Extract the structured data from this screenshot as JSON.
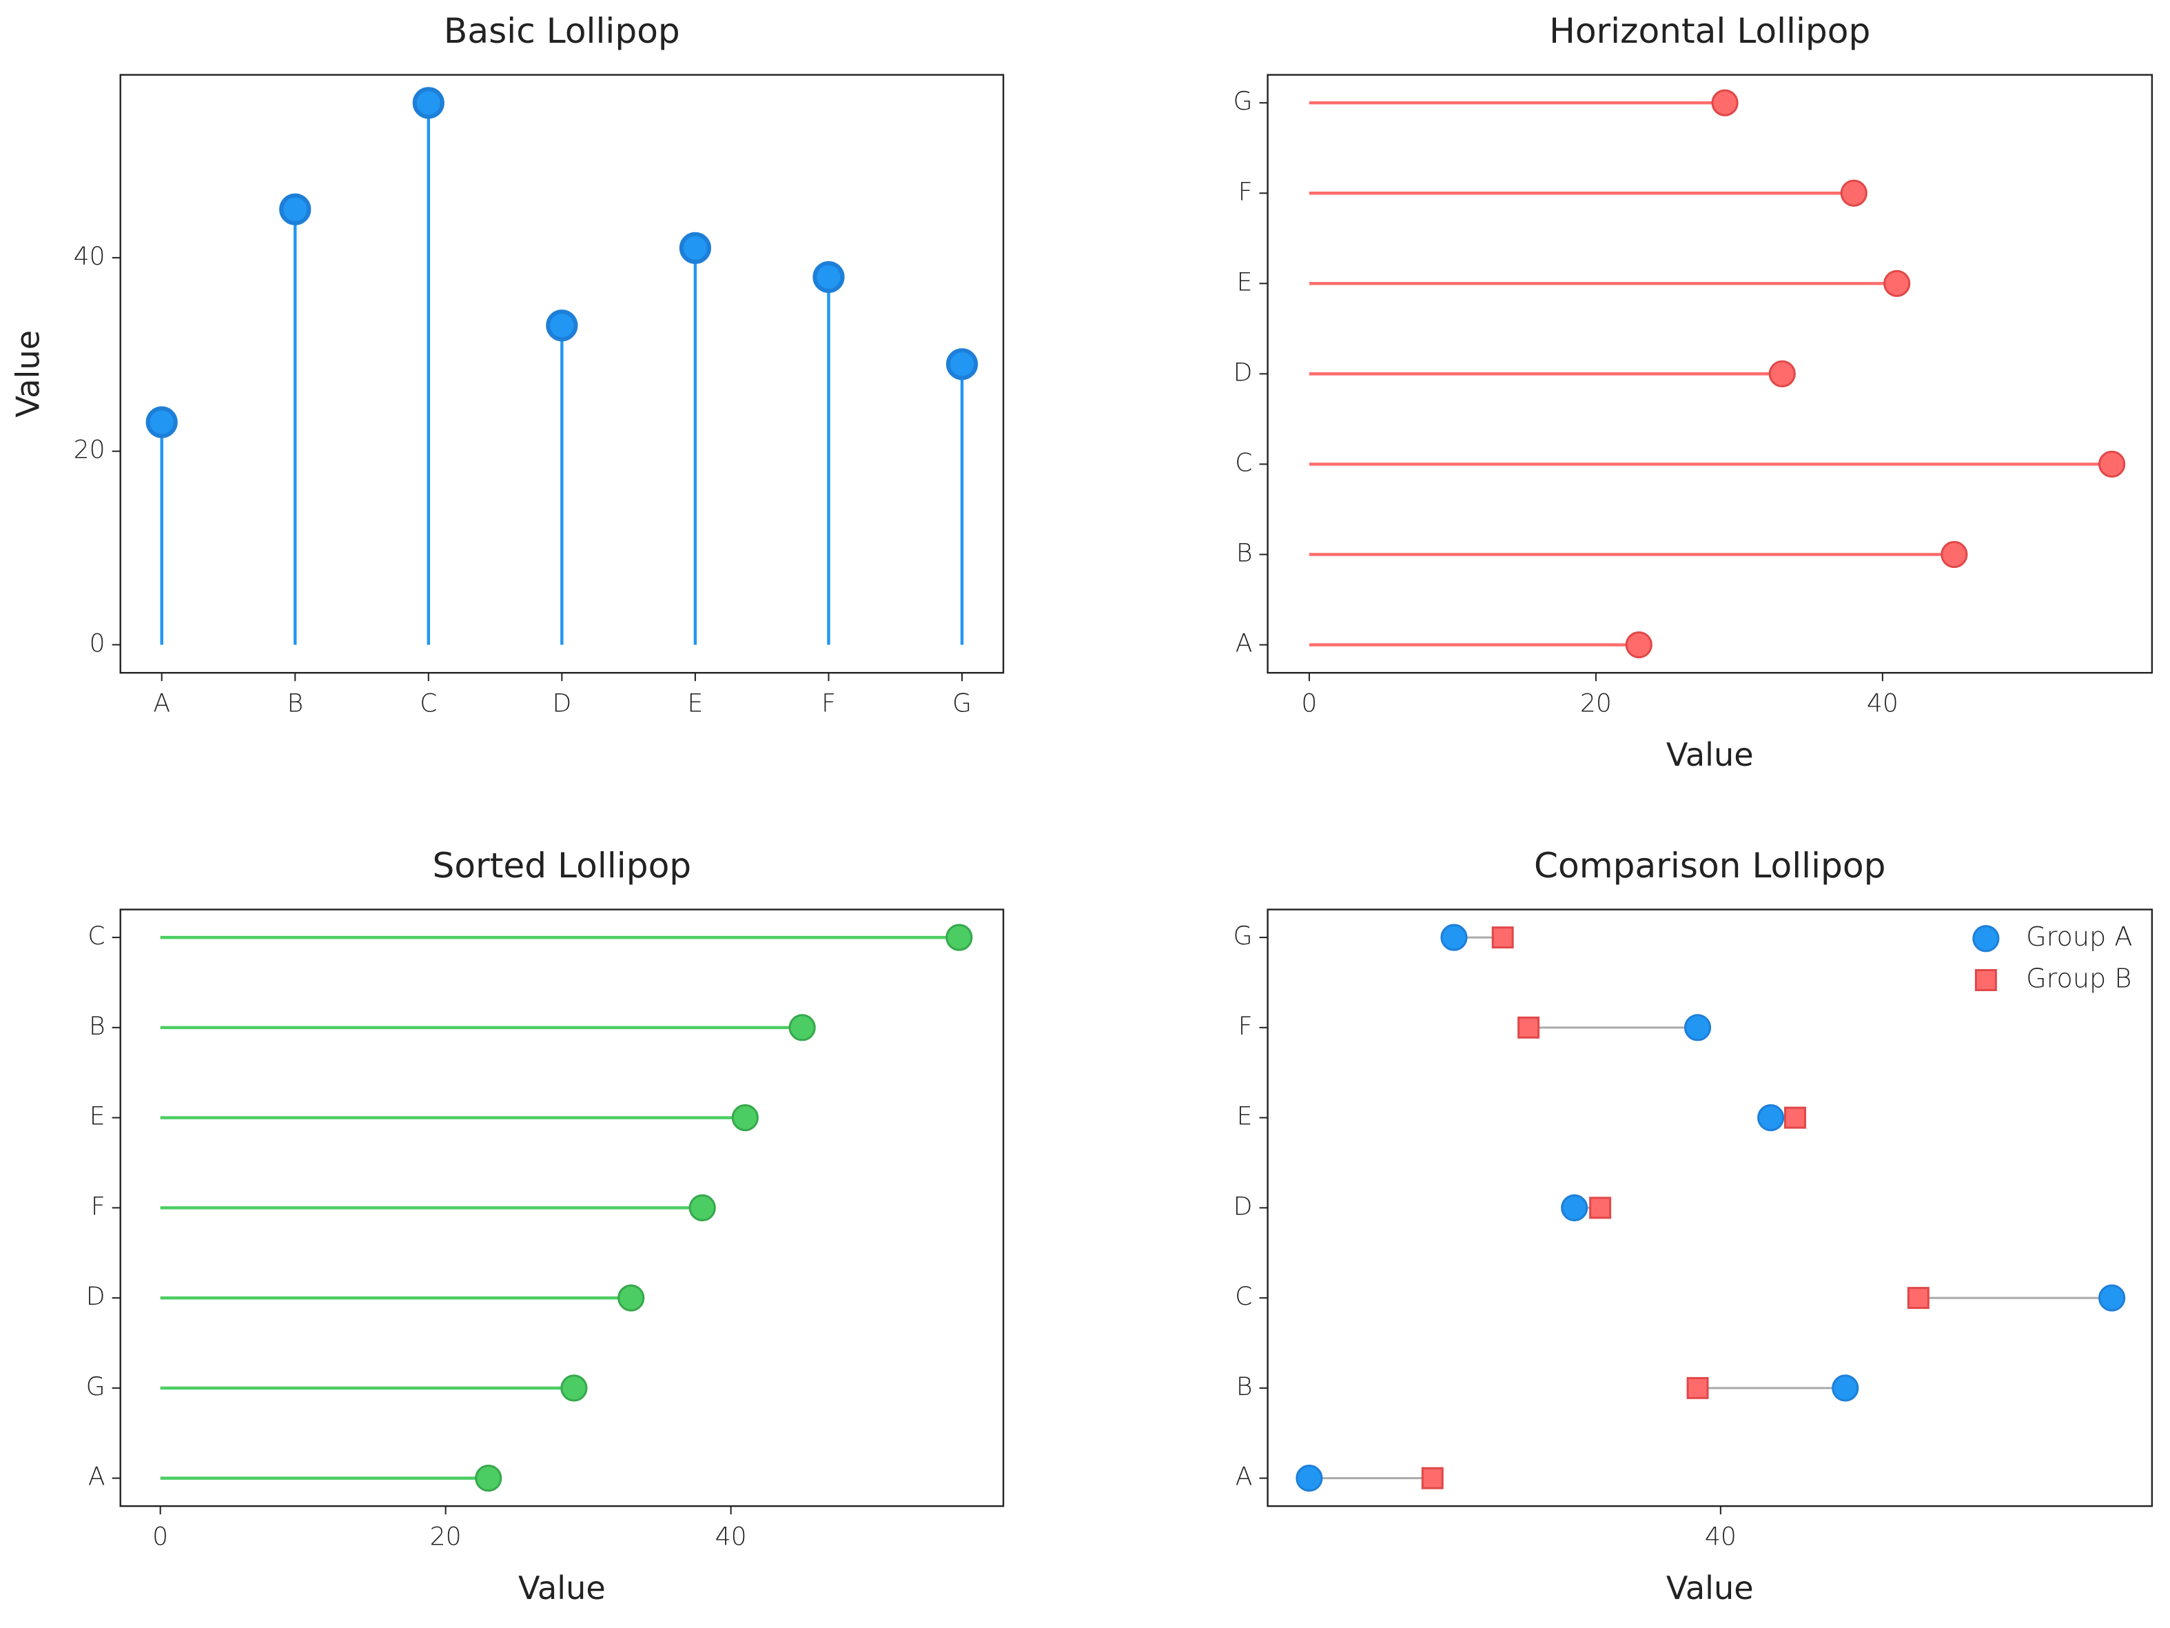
{
  "chart_data": [
    {
      "type": "lollipop",
      "orientation": "vertical",
      "title": "Basic Lollipop",
      "ylabel": "Value",
      "categories": [
        "A",
        "B",
        "C",
        "D",
        "E",
        "F",
        "G"
      ],
      "values": [
        23,
        45,
        56,
        33,
        41,
        38,
        29
      ],
      "color": "#2196f3",
      "edge_color": "#1e7fd8",
      "ylim": [
        -2.9,
        58.9
      ],
      "yticks": [
        0,
        20,
        40
      ]
    },
    {
      "type": "lollipop",
      "orientation": "horizontal",
      "title": "Horizontal Lollipop",
      "xlabel": "Value",
      "categories": [
        "A",
        "B",
        "C",
        "D",
        "E",
        "F",
        "G"
      ],
      "values": [
        23,
        45,
        56,
        33,
        41,
        38,
        29
      ],
      "color": "#ff6b6b",
      "edge_color": "#e04848",
      "xlim": [
        -2.9,
        58.8
      ],
      "xticks": [
        0,
        20,
        40
      ]
    },
    {
      "type": "lollipop",
      "orientation": "horizontal",
      "title": "Sorted Lollipop",
      "xlabel": "Value",
      "categories": [
        "A",
        "G",
        "D",
        "F",
        "E",
        "B",
        "C"
      ],
      "values": [
        23,
        29,
        33,
        38,
        41,
        45,
        56
      ],
      "color": "#4ccd63",
      "edge_color": "#36a84c",
      "xlim": [
        -2.8,
        59.1
      ],
      "xticks": [
        0,
        20,
        40
      ]
    },
    {
      "type": "dumbbell",
      "orientation": "horizontal",
      "title": "Comparison Lollipop",
      "xlabel": "Value",
      "categories": [
        "A",
        "B",
        "C",
        "D",
        "E",
        "F",
        "G"
      ],
      "line_color": "#aaaaaa",
      "legend": "upper right",
      "series": [
        {
          "name": "Group A",
          "marker": "circle",
          "color": "#2196f3",
          "edge_color": "#1e7fd8",
          "values": [
            11.3,
            48.7,
            67.3,
            29.8,
            43.5,
            38.4,
            21.4
          ]
        },
        {
          "name": "Group B",
          "marker": "square",
          "color": "#ff6b6b",
          "edge_color": "#e04848",
          "values": [
            19.9,
            38.4,
            53.8,
            31.6,
            45.2,
            26.6,
            24.8
          ]
        }
      ],
      "xlim": [
        8.4,
        70.1
      ],
      "xticks": [
        40
      ]
    }
  ]
}
